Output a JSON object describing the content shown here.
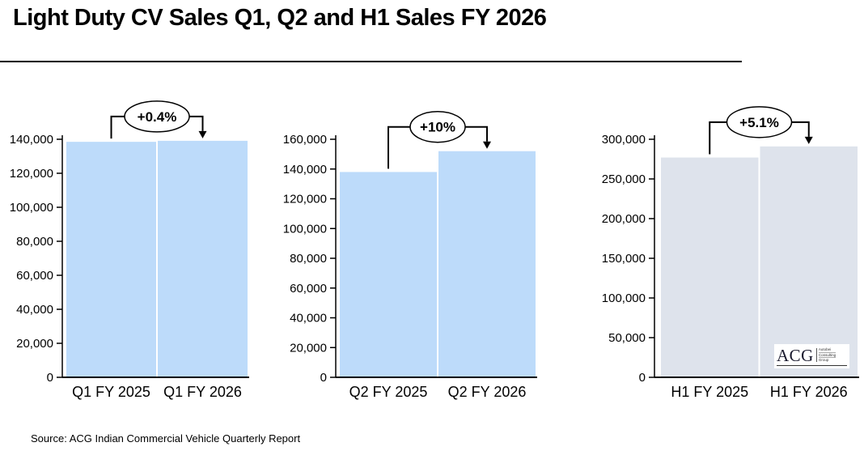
{
  "page": {
    "title": "Light Duty CV Sales Q1, Q2 and H1 Sales FY 2026",
    "source": "Source: ACG Indian Commercial Vehicle Quarterly Report"
  },
  "logo": {
    "acronym": "ACG",
    "lines": [
      "Autobei",
      "Consulting",
      "Group"
    ]
  },
  "colors": {
    "bar_light_blue": "#BDDBFA",
    "bar_light_gray": "#DEE3EC",
    "axis": "#000000",
    "callout_fill": "#FFFFFF"
  },
  "chart_data": [
    {
      "type": "bar",
      "title": "",
      "categories": [
        "Q1 FY 2025",
        "Q1 FY 2026"
      ],
      "values": [
        138500,
        139100
      ],
      "growth_annotation": "+0.4%",
      "ylim": [
        0,
        140000
      ],
      "ytick_step": 20000,
      "ytick_labels": [
        "0",
        "20,000",
        "40,000",
        "60,000",
        "80,000",
        "100,000",
        "120,000",
        "140,000"
      ],
      "bar_color": "#BDDBFA",
      "grid": false,
      "legend": "none"
    },
    {
      "type": "bar",
      "title": "",
      "categories": [
        "Q2 FY 2025",
        "Q2 FY 2026"
      ],
      "values": [
        138000,
        152000
      ],
      "growth_annotation": "+10%",
      "ylim": [
        0,
        160000
      ],
      "ytick_step": 20000,
      "ytick_labels": [
        "0",
        "20,000",
        "40,000",
        "60,000",
        "80,000",
        "100,000",
        "120,000",
        "140,000",
        "160,000"
      ],
      "bar_color": "#BDDBFA",
      "grid": false,
      "legend": "none"
    },
    {
      "type": "bar",
      "title": "",
      "categories": [
        "H1 FY 2025",
        "H1 FY 2026"
      ],
      "values": [
        277000,
        291000
      ],
      "growth_annotation": "+5.1%",
      "ylim": [
        0,
        300000
      ],
      "ytick_step": 50000,
      "ytick_labels": [
        "0",
        "50,000",
        "100,000",
        "150,000",
        "200,000",
        "250,000",
        "300,000"
      ],
      "bar_color": "#DEE3EC",
      "grid": false,
      "legend": "none"
    }
  ]
}
